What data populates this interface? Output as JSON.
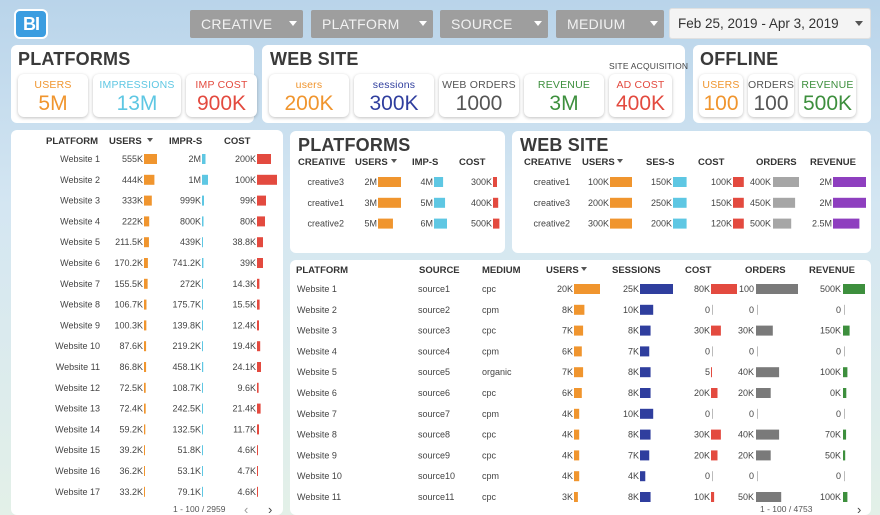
{
  "header": {
    "logo": "BI",
    "filters": [
      "CREATIVE",
      "PLATFORM",
      "SOURCE",
      "MEDIUM"
    ],
    "date_range": "Feb 25, 2019 - Apr 3, 2019"
  },
  "colors": {
    "orange": "#f0952e",
    "cyan": "#5ec7e3",
    "red": "#e34a3f",
    "navy": "#2f3e9e",
    "gray": "#7a7a7a",
    "purple": "#8e3fbf",
    "green": "#3d8f3d"
  },
  "kpi_platforms": {
    "title": "PLATFORMS",
    "items": [
      {
        "label": "USERS",
        "value": "5M",
        "color": "#f0952e"
      },
      {
        "label": "IMPRESSIONS",
        "value": "13M",
        "color": "#5ec7e3"
      },
      {
        "label": "IMP COST",
        "value": "900K",
        "color": "#e34a3f"
      }
    ]
  },
  "kpi_website": {
    "title": "WEB SITE",
    "note": "SITE ACQUISITION",
    "items": [
      {
        "label": "users",
        "value": "200K",
        "color": "#f0952e"
      },
      {
        "label": "sessions",
        "value": "300K",
        "color": "#2f3e9e"
      },
      {
        "label": "WEB ORDERS",
        "value": "1000",
        "color": "#555555"
      },
      {
        "label": "REVENUE",
        "value": "3M",
        "color": "#3d8f3d"
      },
      {
        "label": "AD COST",
        "value": "400K",
        "color": "#e34a3f"
      }
    ]
  },
  "kpi_offline": {
    "title": "OFFLINE",
    "items": [
      {
        "label": "USERS",
        "value": "100",
        "color": "#f0952e"
      },
      {
        "label": "ORDERS",
        "value": "100",
        "color": "#555555"
      },
      {
        "label": "REVENUE",
        "value": "500K",
        "color": "#3d8f3d"
      }
    ]
  },
  "platform_table": {
    "headers": [
      "PLATFORM",
      "USERS",
      "IMPR-S",
      "COST"
    ],
    "rows": [
      {
        "name": "Website 1",
        "users": "555K",
        "u": 1.0,
        "impr": "2M",
        "i": 0.35,
        "cost": "200K",
        "c": 0.7
      },
      {
        "name": "Website 2",
        "users": "444K",
        "u": 0.8,
        "impr": "1M",
        "i": 0.6,
        "cost": "100K",
        "c": 1.0
      },
      {
        "name": "Website 3",
        "users": "333K",
        "u": 0.6,
        "impr": "999K",
        "i": 0.2,
        "cost": "99K",
        "c": 0.45
      },
      {
        "name": "Website 4",
        "users": "222K",
        "u": 0.4,
        "impr": "800K",
        "i": 0.15,
        "cost": "80K",
        "c": 0.4
      },
      {
        "name": "Website 5",
        "users": "211.5K",
        "u": 0.38,
        "impr": "439K",
        "i": 0.1,
        "cost": "38.8K",
        "c": 0.3
      },
      {
        "name": "Website 6",
        "users": "170.2K",
        "u": 0.3,
        "impr": "741.2K",
        "i": 0.14,
        "cost": "39K",
        "c": 0.3
      },
      {
        "name": "Website 7",
        "users": "155.5K",
        "u": 0.28,
        "impr": "272K",
        "i": 0.08,
        "cost": "14.3K",
        "c": 0.12
      },
      {
        "name": "Website 8",
        "users": "106.7K",
        "u": 0.19,
        "impr": "175.7K",
        "i": 0.05,
        "cost": "15.5K",
        "c": 0.13
      },
      {
        "name": "Website 9",
        "users": "100.3K",
        "u": 0.18,
        "impr": "139.8K",
        "i": 0.04,
        "cost": "12.4K",
        "c": 0.1
      },
      {
        "name": "Website 10",
        "users": "87.6K",
        "u": 0.16,
        "impr": "219.2K",
        "i": 0.06,
        "cost": "19.4K",
        "c": 0.16
      },
      {
        "name": "Website 11",
        "users": "86.8K",
        "u": 0.16,
        "impr": "458.1K",
        "i": 0.12,
        "cost": "24.1K",
        "c": 0.2
      },
      {
        "name": "Website 12",
        "users": "72.5K",
        "u": 0.13,
        "impr": "108.7K",
        "i": 0.03,
        "cost": "9.6K",
        "c": 0.08
      },
      {
        "name": "Website 13",
        "users": "72.4K",
        "u": 0.13,
        "impr": "242.5K",
        "i": 0.06,
        "cost": "21.4K",
        "c": 0.18
      },
      {
        "name": "Website 14",
        "users": "59.2K",
        "u": 0.1,
        "impr": "132.5K",
        "i": 0.03,
        "cost": "11.7K",
        "c": 0.1
      },
      {
        "name": "Website 15",
        "users": "39.2K",
        "u": 0.07,
        "impr": "51.8K",
        "i": 0.02,
        "cost": "4.6K",
        "c": 0.04
      },
      {
        "name": "Website 16",
        "users": "36.2K",
        "u": 0.06,
        "impr": "53.1K",
        "i": 0.02,
        "cost": "4.7K",
        "c": 0.04
      },
      {
        "name": "Website 17",
        "users": "33.2K",
        "u": 0.06,
        "impr": "79.1K",
        "i": 0.02,
        "cost": "4.6K",
        "c": 0.04
      }
    ],
    "pager": "1 - 100 / 2959"
  },
  "creative_platforms": {
    "title": "PLATFORMS",
    "headers": [
      "CREATIVE",
      "USERS",
      "IMP-S",
      "COST"
    ],
    "rows": [
      {
        "name": "creative3",
        "users": "2M",
        "u": 1.0,
        "imp": "4M",
        "i": 0.7,
        "cost": "300K",
        "c": 0.5
      },
      {
        "name": "creative1",
        "users": "3M",
        "u": 1.0,
        "imp": "5M",
        "i": 0.85,
        "cost": "400K",
        "c": 0.65
      },
      {
        "name": "creative2",
        "users": "5M",
        "u": 0.65,
        "imp": "6M",
        "i": 1.0,
        "cost": "500K",
        "c": 0.8
      }
    ]
  },
  "creative_website": {
    "title": "WEB SITE",
    "headers": [
      "CREATIVE",
      "USERS",
      "SES-S",
      "COST",
      "ORDERS",
      "REVENUE"
    ],
    "rows": [
      {
        "name": "creative1",
        "users": "100K",
        "u": 1.0,
        "ses": "150K",
        "s": 0.85,
        "cost": "100K",
        "c": 0.6,
        "orders": "400K",
        "o": 1.0,
        "rev": "2M",
        "r": 1.0
      },
      {
        "name": "creative3",
        "users": "200K",
        "u": 1.0,
        "ses": "250K",
        "s": 0.85,
        "cost": "150K",
        "c": 0.6,
        "orders": "450K",
        "o": 0.85,
        "rev": "2M",
        "r": 1.0
      },
      {
        "name": "creative2",
        "users": "300K",
        "u": 1.0,
        "ses": "200K",
        "s": 0.85,
        "cost": "120K",
        "c": 0.6,
        "orders": "500K",
        "o": 0.7,
        "rev": "2.5M",
        "r": 0.8
      }
    ]
  },
  "source_table": {
    "headers": [
      "PLATFORM",
      "SOURCE",
      "MEDIUM",
      "USERS",
      "SESSIONS",
      "COST",
      "ORDERS",
      "REVENUE"
    ],
    "rows": [
      {
        "name": "Website 1",
        "source": "source1",
        "medium": "cpc",
        "users": "20K",
        "u": 1.0,
        "ses": "25K",
        "s": 1.0,
        "cost": "80K",
        "c": 1.0,
        "orders": "100",
        "o": 1.0,
        "rev": "500K",
        "r": 1.0
      },
      {
        "name": "Website 2",
        "source": "source2",
        "medium": "cpm",
        "users": "8K",
        "u": 0.4,
        "ses": "10K",
        "s": 0.4,
        "cost": "0",
        "c": 0,
        "orders": "0",
        "o": 0,
        "rev": "0",
        "r": 0
      },
      {
        "name": "Website 3",
        "source": "source3",
        "medium": "cpc",
        "users": "7K",
        "u": 0.35,
        "ses": "8K",
        "s": 0.32,
        "cost": "30K",
        "c": 0.38,
        "orders": "30K",
        "o": 0.4,
        "rev": "150K",
        "r": 0.3
      },
      {
        "name": "Website 4",
        "source": "source4",
        "medium": "cpm",
        "users": "6K",
        "u": 0.3,
        "ses": "7K",
        "s": 0.28,
        "cost": "0",
        "c": 0,
        "orders": "0",
        "o": 0,
        "rev": "0",
        "r": 0
      },
      {
        "name": "Website 5",
        "source": "source5",
        "medium": "organic",
        "users": "7K",
        "u": 0.35,
        "ses": "8K",
        "s": 0.32,
        "cost": "5",
        "c": 0.01,
        "orders": "40K",
        "o": 0.55,
        "rev": "100K",
        "r": 0.2
      },
      {
        "name": "Website 6",
        "source": "source6",
        "medium": "cpc",
        "users": "6K",
        "u": 0.3,
        "ses": "8K",
        "s": 0.32,
        "cost": "20K",
        "c": 0.25,
        "orders": "20K",
        "o": 0.35,
        "rev": "0K",
        "r": 0.15
      },
      {
        "name": "Website 7",
        "source": "source7",
        "medium": "cpm",
        "users": "4K",
        "u": 0.2,
        "ses": "10K",
        "s": 0.4,
        "cost": "0",
        "c": 0,
        "orders": "0",
        "o": 0,
        "rev": "0",
        "r": 0
      },
      {
        "name": "Website 8",
        "source": "source8",
        "medium": "cpc",
        "users": "4K",
        "u": 0.2,
        "ses": "8K",
        "s": 0.32,
        "cost": "30K",
        "c": 0.38,
        "orders": "40K",
        "o": 0.55,
        "rev": "70K",
        "r": 0.14
      },
      {
        "name": "Website 9",
        "source": "source9",
        "medium": "cpc",
        "users": "4K",
        "u": 0.2,
        "ses": "7K",
        "s": 0.28,
        "cost": "20K",
        "c": 0.25,
        "orders": "20K",
        "o": 0.35,
        "rev": "50K",
        "r": 0.1
      },
      {
        "name": "Website 10",
        "source": "source10",
        "medium": "cpm",
        "users": "4K",
        "u": 0.2,
        "ses": "4K",
        "s": 0.16,
        "cost": "0",
        "c": 0,
        "orders": "0",
        "o": 0,
        "rev": "0",
        "r": 0
      },
      {
        "name": "Website 11",
        "source": "source11",
        "medium": "cpc",
        "users": "3K",
        "u": 0.15,
        "ses": "8K",
        "s": 0.32,
        "cost": "10K",
        "c": 0.12,
        "orders": "50K",
        "o": 0.6,
        "rev": "100K",
        "r": 0.2
      }
    ],
    "pager": "1 - 100 / 4753"
  }
}
